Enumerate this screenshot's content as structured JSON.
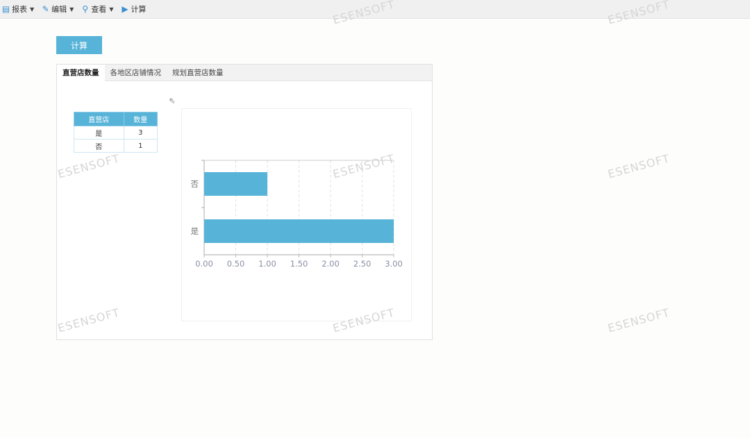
{
  "toolbar": {
    "items": [
      {
        "label": "报表",
        "icon": "report-icon",
        "dropdown": true
      },
      {
        "label": "编辑",
        "icon": "pencil-icon",
        "dropdown": true
      },
      {
        "label": "查看",
        "icon": "magnifier-icon",
        "dropdown": true
      },
      {
        "label": "计算",
        "icon": "play-icon",
        "dropdown": false
      }
    ]
  },
  "calc_button": "计算",
  "tabs": [
    {
      "label": "直营店数量",
      "active": true
    },
    {
      "label": "各地区店铺情况",
      "active": false
    },
    {
      "label": "规划直营店数量",
      "active": false
    }
  ],
  "table": {
    "headers": [
      "直营店",
      "数量"
    ],
    "rows": [
      [
        "是",
        "3"
      ],
      [
        "否",
        "1"
      ]
    ]
  },
  "watermark": "ESENSOFT",
  "colors": {
    "accent": "#57b3d8"
  },
  "chart_data": {
    "type": "bar",
    "orientation": "horizontal",
    "categories": [
      "是",
      "否"
    ],
    "values": [
      3,
      1
    ],
    "xlim": [
      0,
      3
    ],
    "xticks": [
      "0.00",
      "0.50",
      "1.00",
      "1.50",
      "2.00",
      "2.50",
      "3.00"
    ],
    "grid": true,
    "color": "#57b3d8"
  }
}
